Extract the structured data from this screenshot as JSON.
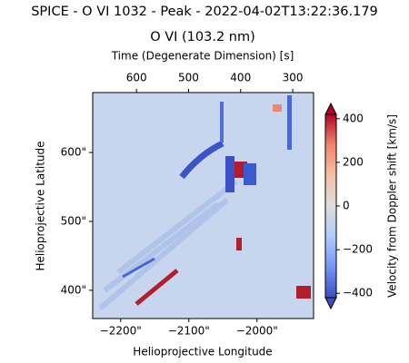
{
  "chart_data": {
    "type": "image",
    "title": "SPICE - O VI 1032 - Peak - 2022-04-02T13:22:36.179",
    "subtitle": "O VI (103.2 nm)",
    "x_label": "Helioprojective Longitude",
    "y_label": "Helioprojective Latitude",
    "x2_label": "Time (Degenerate Dimension) [s]",
    "colorbar_label": "Velocity from Doppler shift [km/s]",
    "colormap": "coolwarm",
    "xlim": [
      -2241,
      -1917
    ],
    "xticks": [
      {
        "value": -2200,
        "label": "−2200\""
      },
      {
        "value": -2100,
        "label": "−2100\""
      },
      {
        "value": -2000,
        "label": "−2000\""
      }
    ],
    "x2lim": [
      684,
      260
    ],
    "x2ticks": [
      600,
      500,
      400,
      300
    ],
    "ylim": [
      359,
      687
    ],
    "yticks": [
      {
        "value": 400,
        "label": "400\""
      },
      {
        "value": 500,
        "label": "500\""
      },
      {
        "value": 600,
        "label": "600\""
      }
    ],
    "clim": [
      -420,
      420
    ],
    "cticks": [
      {
        "value": -400,
        "label": "−400"
      },
      {
        "value": -200,
        "label": "−200"
      },
      0,
      200,
      400
    ]
  }
}
